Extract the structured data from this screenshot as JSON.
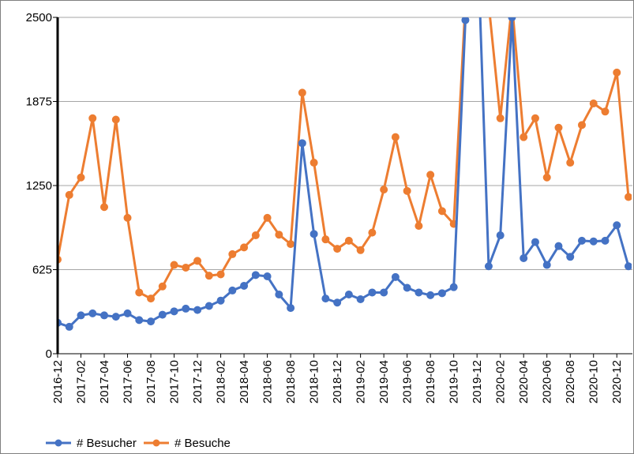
{
  "chart_data": {
    "type": "line",
    "title": "",
    "xlabel": "",
    "ylabel": "",
    "ylim": [
      0,
      2500
    ],
    "yticks": [
      0,
      625,
      1250,
      1875,
      2500
    ],
    "ytick_labels": [
      "0",
      "625",
      "1250",
      "1875",
      "2500"
    ],
    "grid": true,
    "legend": "bottom-left",
    "x": [
      "2016-12",
      "2017-01",
      "2017-02",
      "2017-03",
      "2017-04",
      "2017-05",
      "2017-06",
      "2017-07",
      "2017-08",
      "2017-09",
      "2017-10",
      "2017-11",
      "2017-12",
      "2018-01",
      "2018-02",
      "2018-03",
      "2018-04",
      "2018-05",
      "2018-06",
      "2018-07",
      "2018-08",
      "2018-09",
      "2018-10",
      "2018-11",
      "2018-12",
      "2019-01",
      "2019-02",
      "2019-03",
      "2019-04",
      "2019-05",
      "2019-06",
      "2019-07",
      "2019-08",
      "2019-09",
      "2019-10",
      "2019-11",
      "2019-12",
      "2020-01",
      "2020-02",
      "2020-03",
      "2020-04",
      "2020-05",
      "2020-06",
      "2020-07",
      "2020-08",
      "2020-09",
      "2020-10",
      "2020-11",
      "2020-12",
      "2021-01"
    ],
    "xtick_labels": [
      "2016-12",
      "2017-02",
      "2017-04",
      "2017-06",
      "2017-08",
      "2017-10",
      "2017-12",
      "2018-02",
      "2018-04",
      "2018-06",
      "2018-08",
      "2018-10",
      "2018-12",
      "2019-02",
      "2019-04",
      "2019-06",
      "2019-08",
      "2019-10",
      "2019-12",
      "2020-02",
      "2020-04",
      "2020-06",
      "2020-08",
      "2020-10",
      "2020-12"
    ],
    "series": [
      {
        "name": "# Besucher",
        "color": "#4472c4",
        "values": [
          230,
          200,
          285,
          300,
          285,
          275,
          300,
          250,
          240,
          290,
          315,
          335,
          325,
          355,
          395,
          470,
          505,
          585,
          575,
          440,
          340,
          1565,
          890,
          410,
          380,
          440,
          405,
          455,
          455,
          570,
          490,
          455,
          435,
          450,
          495,
          2480,
          3200,
          650,
          880,
          2500,
          710,
          830,
          660,
          800,
          720,
          840,
          835,
          840,
          955,
          650
        ]
      },
      {
        "name": "# Besuche",
        "color": "#ed7d31",
        "values": [
          700,
          1180,
          1310,
          1750,
          1090,
          1740,
          1010,
          455,
          410,
          500,
          660,
          640,
          690,
          580,
          590,
          740,
          790,
          880,
          1010,
          885,
          815,
          1940,
          1420,
          850,
          780,
          840,
          770,
          900,
          1220,
          1610,
          1210,
          950,
          1330,
          1060,
          965,
          2600,
          3400,
          2600,
          1750,
          2600,
          1610,
          1750,
          1310,
          1680,
          1420,
          1700,
          1860,
          1800,
          2090,
          1165
        ]
      }
    ]
  }
}
